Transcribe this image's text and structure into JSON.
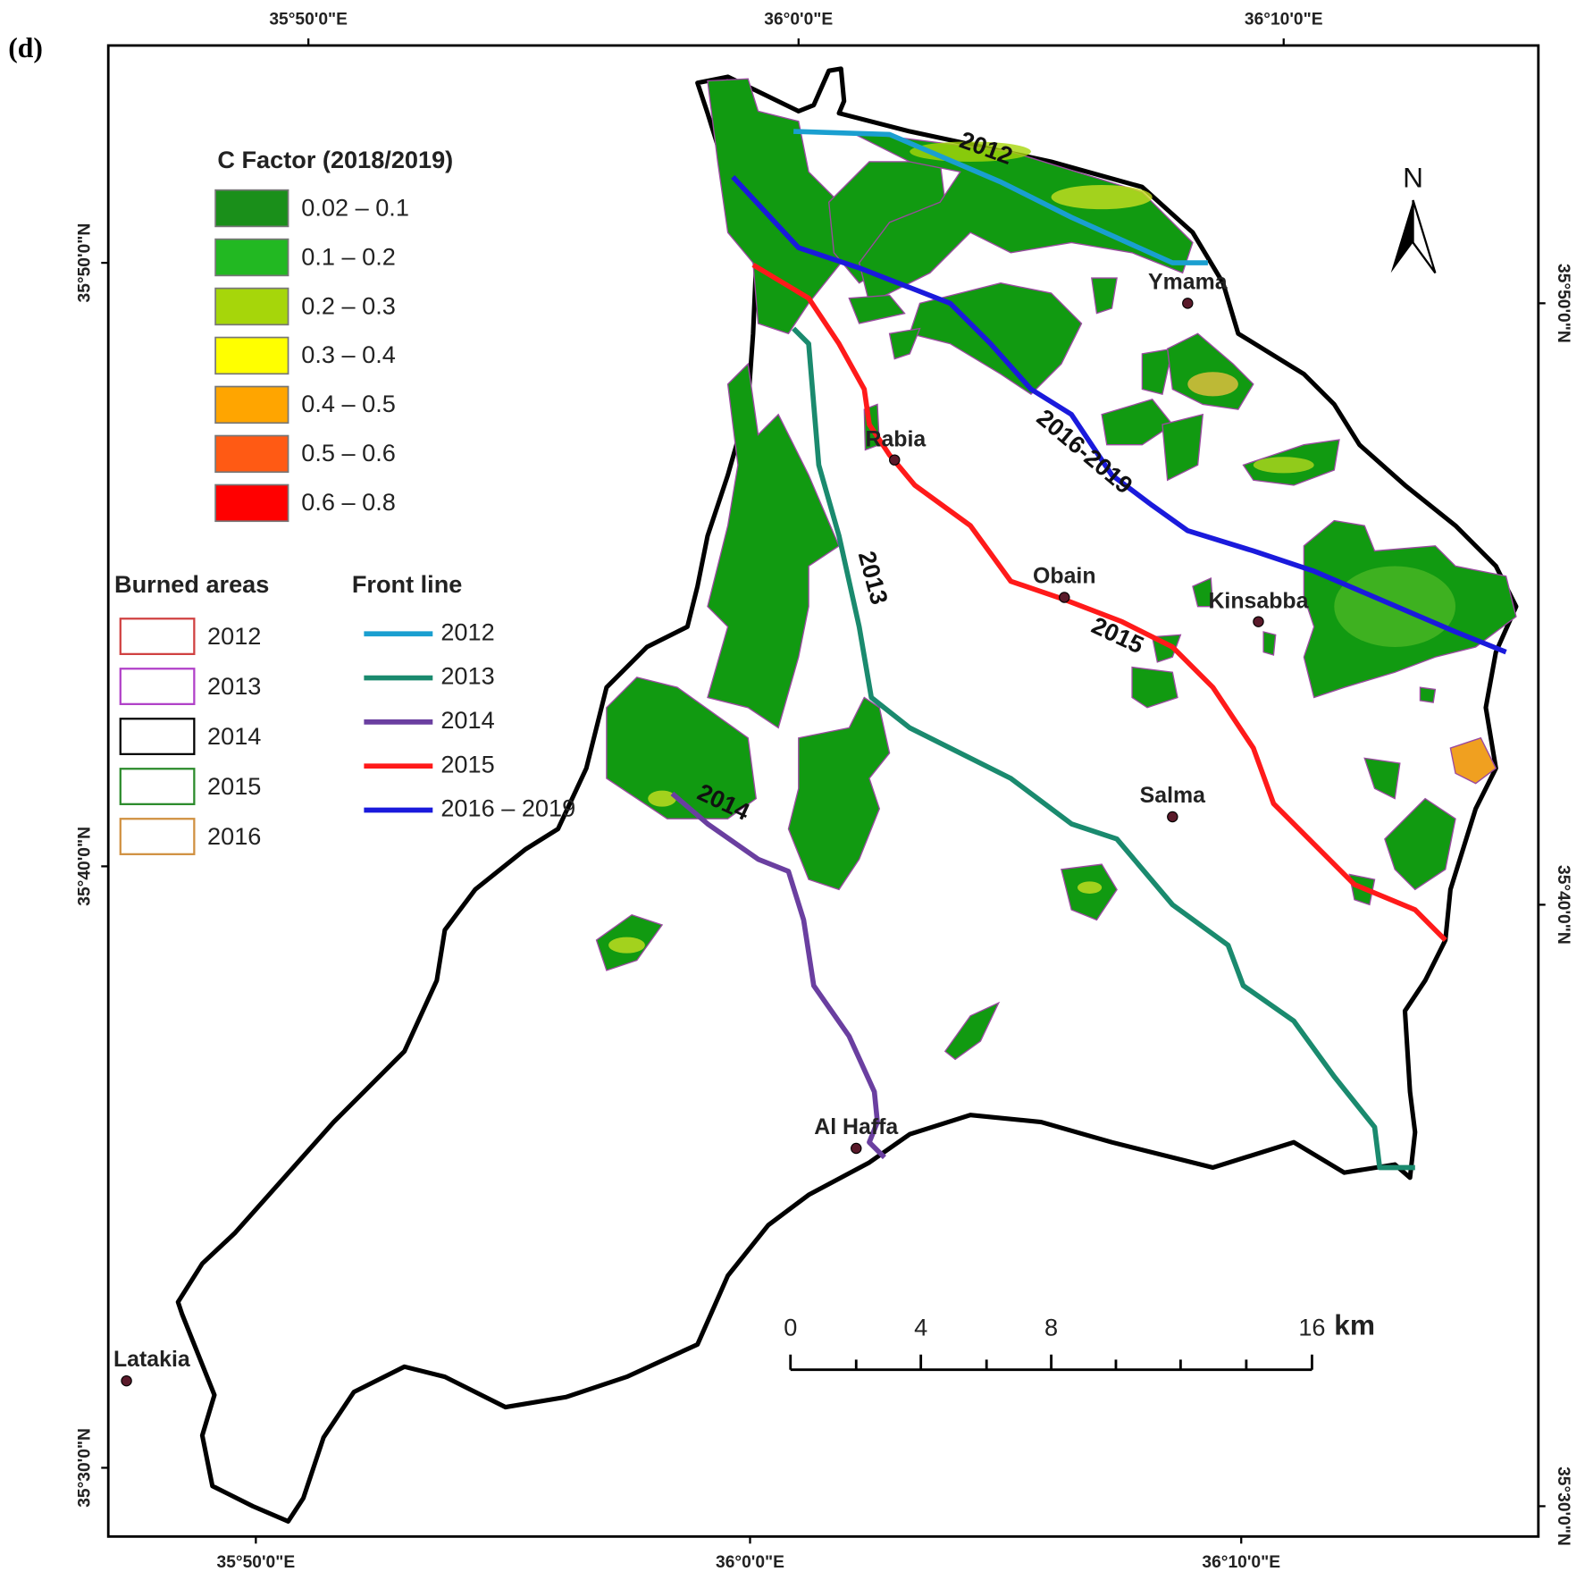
{
  "panel_label": "(d)",
  "coordinates": {
    "top": [
      "35°50'0\"E",
      "36°0'0\"E",
      "36°10'0\"E"
    ],
    "bottom": [
      "35°50'0\"E",
      "36°0'0\"E",
      "36°10'0\"E"
    ],
    "left": [
      "35°50'0\"N",
      "35°40'0\"N",
      "35°30'0\"N"
    ],
    "right": [
      "35°50'0\"N",
      "35°40'0\"N",
      "35°30'0\"N"
    ]
  },
  "c_factor_legend": {
    "title": "C Factor (2018/2019)",
    "classes": [
      {
        "label": "0.02 – 0.1",
        "color": "#1a8f1a"
      },
      {
        "label": "0.1 – 0.2",
        "color": "#22b822"
      },
      {
        "label": "0.2 – 0.3",
        "color": "#a6d60a"
      },
      {
        "label": "0.3 – 0.4",
        "color": "#ffff00"
      },
      {
        "label": "0.4 – 0.5",
        "color": "#ffa500"
      },
      {
        "label": "0.5 – 0.6",
        "color": "#ff5a14"
      },
      {
        "label": "0.6 – 0.8",
        "color": "#ff0000"
      }
    ]
  },
  "burned_areas_legend": {
    "title": "Burned areas",
    "items": [
      {
        "label": "2012",
        "color": "#d04040"
      },
      {
        "label": "2013",
        "color": "#b040c8"
      },
      {
        "label": "2014",
        "color": "#000000"
      },
      {
        "label": "2015",
        "color": "#2a8a2a"
      },
      {
        "label": "2016",
        "color": "#d09040"
      }
    ]
  },
  "front_line_legend": {
    "title": "Front line",
    "items": [
      {
        "label": "2012",
        "color": "#1a9fd0"
      },
      {
        "label": "2013",
        "color": "#1a8a6e"
      },
      {
        "label": "2014",
        "color": "#6a3fa0"
      },
      {
        "label": "2015",
        "color": "#ff1a1a"
      },
      {
        "label": "2016 – 2019",
        "color": "#1a1adc"
      }
    ]
  },
  "map_line_labels": [
    "2012",
    "2016-2019",
    "2013",
    "2015",
    "2014"
  ],
  "places": [
    "Ymama",
    "Rabia",
    "Obain",
    "Kinsabba",
    "Salma",
    "Al Haffa",
    "Latakia"
  ],
  "scale_bar": {
    "ticks": [
      "0",
      "4",
      "8",
      "16"
    ],
    "unit": "km"
  },
  "north": "N"
}
